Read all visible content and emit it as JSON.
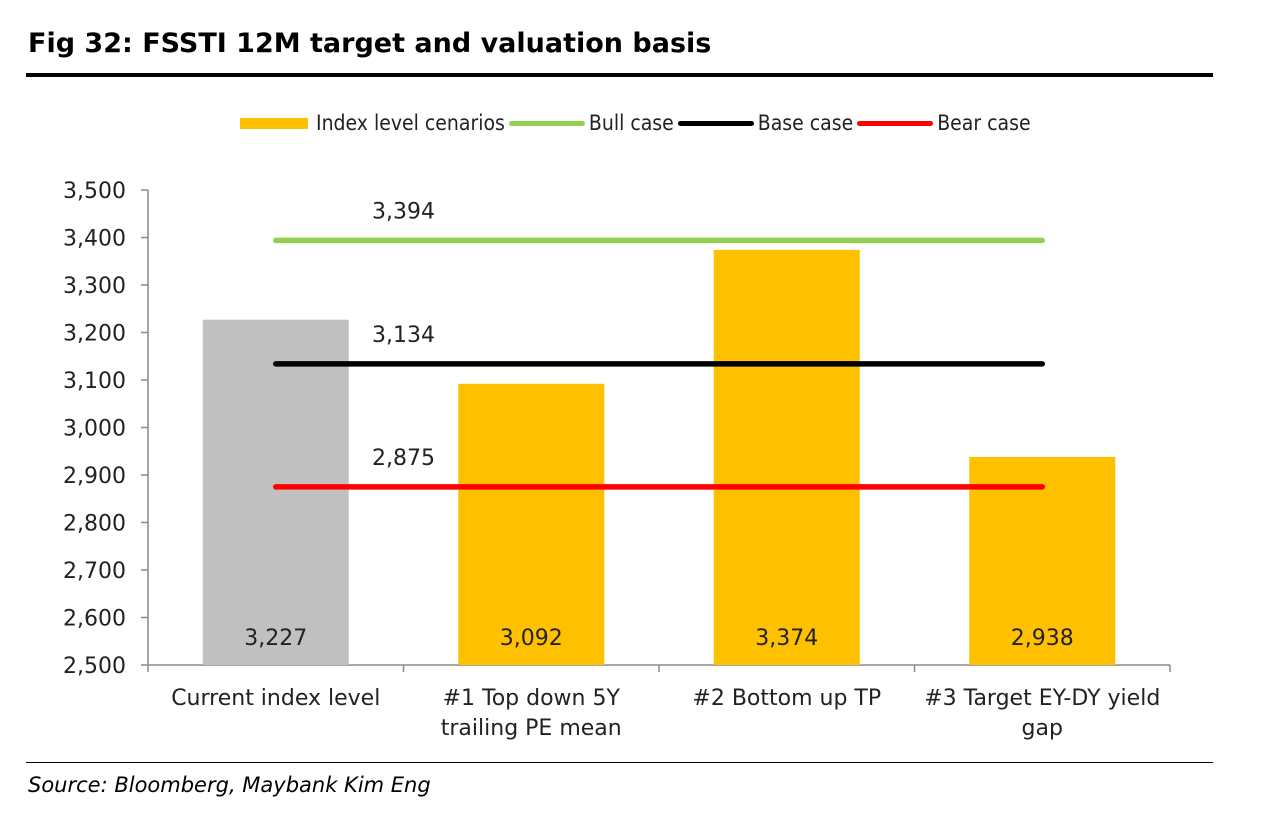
{
  "figure": {
    "title": "Fig 32: FSSTI 12M target and valuation basis",
    "source": "Source: Bloomberg, Maybank Kim Eng"
  },
  "chart_data": {
    "type": "bar",
    "categories": [
      [
        "Current index level"
      ],
      [
        "#1 Top down 5Y",
        "trailing PE mean"
      ],
      [
        "#2 Bottom up TP"
      ],
      [
        "#3 Target EY-DY yield",
        "gap"
      ]
    ],
    "values": [
      3227,
      3092,
      3374,
      2938
    ],
    "value_labels": [
      "3,227",
      "3,092",
      "3,374",
      "2,938"
    ],
    "bar_colors": [
      "#c0c0c0",
      "#ffc000",
      "#ffc000",
      "#ffc000"
    ],
    "ylim": [
      2500,
      3500
    ],
    "yticks": [
      2500,
      2600,
      2700,
      2800,
      2900,
      3000,
      3100,
      3200,
      3300,
      3400,
      3500
    ],
    "ytick_labels": [
      "2,500",
      "2,600",
      "2,700",
      "2,800",
      "2,900",
      "3,000",
      "3,100",
      "3,200",
      "3,300",
      "3,400",
      "3,500"
    ],
    "grid": false,
    "legend_position": "top",
    "series": [
      {
        "name": "Index level cenarios",
        "kind": "bar",
        "color": "#ffc000"
      },
      {
        "name": "Bull case",
        "kind": "line",
        "value": 3394,
        "label": "3,394",
        "color": "#92d050"
      },
      {
        "name": "Base case",
        "kind": "line",
        "value": 3134,
        "label": "3,134",
        "color": "#000000"
      },
      {
        "name": "Bear case",
        "kind": "line",
        "value": 2875,
        "label": "2,875",
        "color": "#ff0000"
      }
    ]
  }
}
